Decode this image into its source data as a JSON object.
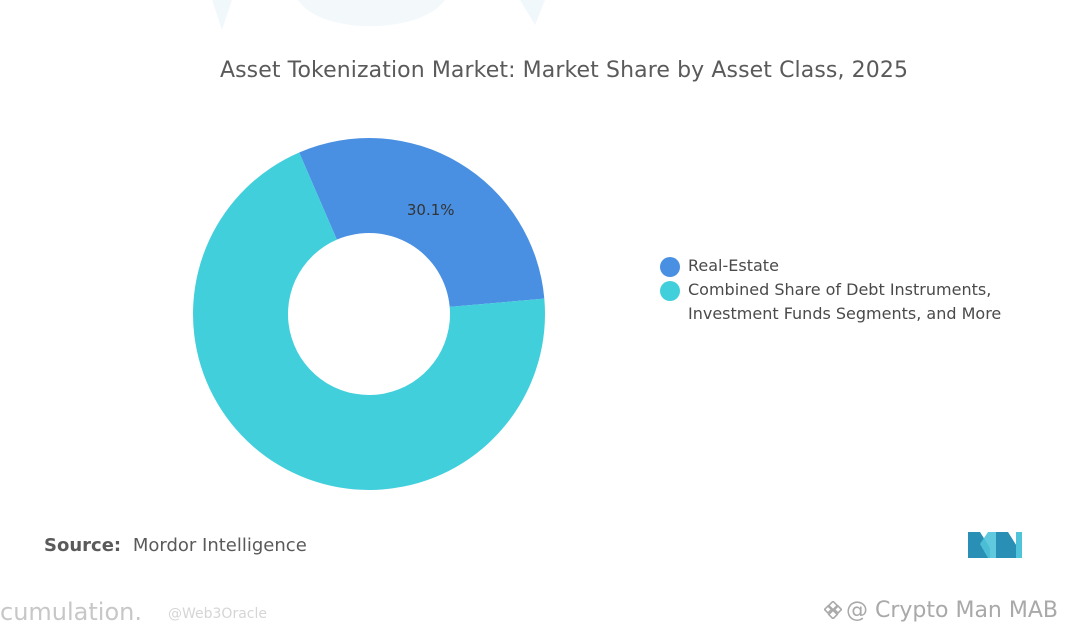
{
  "chart_data": {
    "type": "pie",
    "title": "Asset Tokenization Market: Market Share by Asset Class, 2025",
    "slices": [
      {
        "name": "Real-Estate",
        "value": 30.1,
        "label": "30.1%",
        "color": "#4a90e2"
      },
      {
        "name": "Combined Share of Debt Instruments, Investment Funds Segments, and More",
        "value": 69.9,
        "label": "",
        "color": "#42cfdc"
      }
    ],
    "donut": true,
    "legend_position": "right"
  },
  "legend": {
    "items": [
      {
        "lines": [
          "Real-Estate"
        ],
        "color": "#4a90e2"
      },
      {
        "lines": [
          "Combined Share of Debt Instruments,",
          "Investment Funds Segments, and More"
        ],
        "color": "#42cfdc"
      }
    ]
  },
  "source": {
    "key": "Source:",
    "value": "Mordor Intelligence"
  },
  "logo": {
    "icon": "mordor-intelligence-logo-icon",
    "colors": [
      "#2a8fb5",
      "#4fc3d9"
    ]
  },
  "watermarks": {
    "left_text": "cumulation.",
    "handle": "@Web3Oracle",
    "right_text": "@ Crypto Man MAB",
    "right_icon": "binance-square-icon"
  }
}
